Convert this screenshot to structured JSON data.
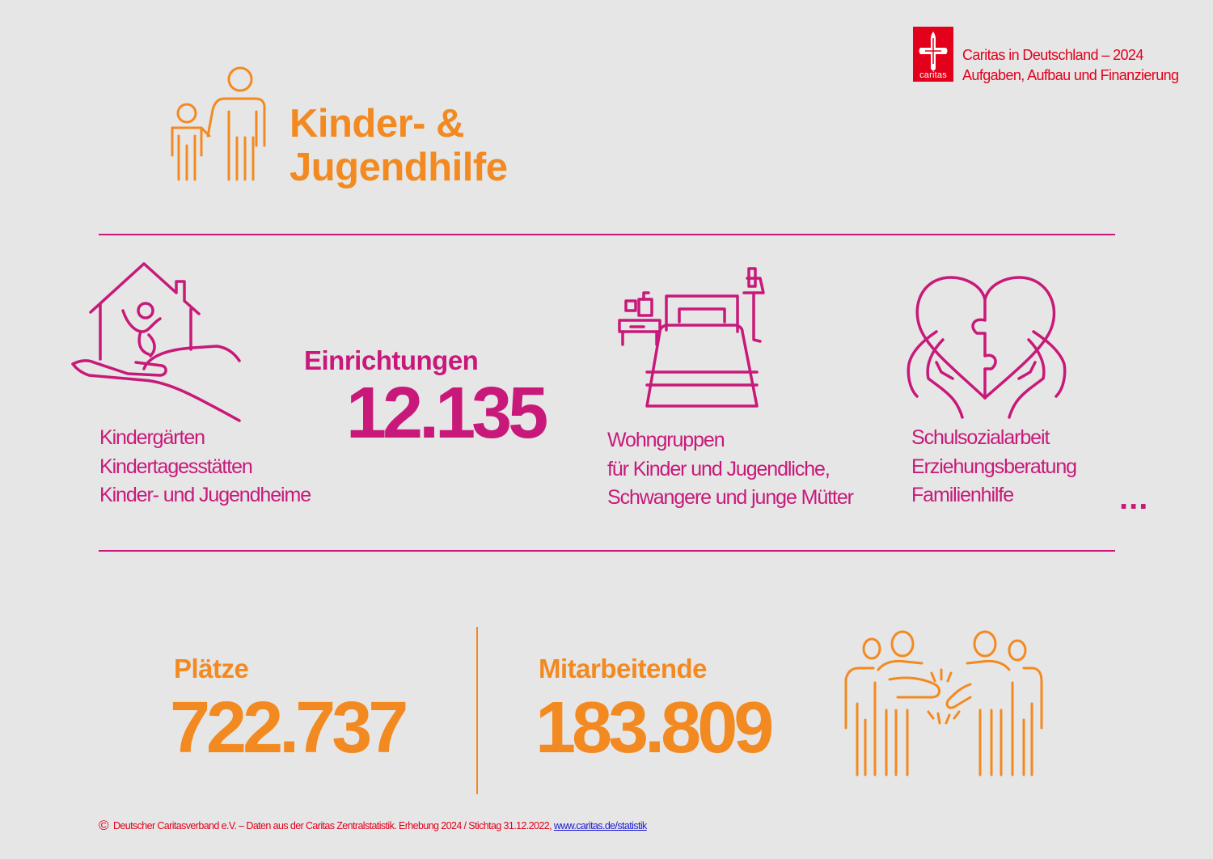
{
  "header": {
    "brand_line1": "Caritas in Deutschland – 2024",
    "brand_line2": "Aufgaben, Aufbau und Finanzierung",
    "logo_word": "caritas",
    "title_line1": "Kinder- &",
    "title_line2": "Jugendhilfe"
  },
  "facilities": {
    "label": "Einrichtungen",
    "value": "12.135",
    "groups": [
      {
        "icon": "hand-house-child-icon",
        "lines": [
          "Kindergärten",
          "Kindertagesstätten",
          "Kinder- und Jugendheime"
        ]
      },
      {
        "icon": "bedroom-icon",
        "lines": [
          "Wohngruppen",
          "für Kinder und Jugendliche,",
          "Schwangere und junge Mütter"
        ]
      },
      {
        "icon": "hands-heart-icon",
        "lines": [
          "Schulsozialarbeit",
          "Erziehungsberatung",
          "Familienhilfe"
        ]
      }
    ],
    "ellipsis": "..."
  },
  "places": {
    "label": "Plätze",
    "value": "722.737"
  },
  "staff": {
    "label": "Mitarbeitende",
    "value": "183.809",
    "icon": "group-people-icon"
  },
  "footer": {
    "copyright": "©",
    "text": "Deutscher Caritasverband e.V. – Daten aus der Caritas Zentralstatistik. Erhebung 2024 / Stichtag 31.12.2022,",
    "link": "www.caritas.de/statistik"
  },
  "colors": {
    "accent_orange": "#f28a21",
    "accent_magenta": "#c8197a",
    "brand_red": "#e3001b",
    "background": "#e6e6e6"
  }
}
